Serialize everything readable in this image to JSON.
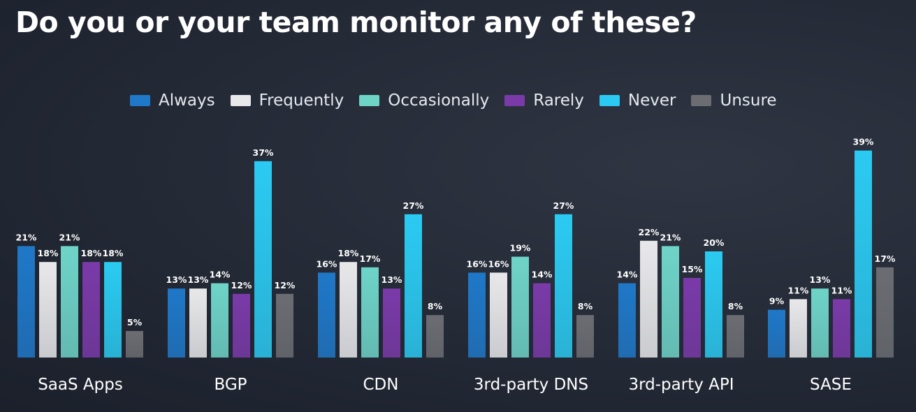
{
  "title": "Do you or your team monitor any of these?",
  "chart_data": {
    "type": "bar",
    "title": "Do you or your team monitor any of these?",
    "xlabel": "",
    "ylabel": "",
    "ylim": [
      0,
      40
    ],
    "grid": false,
    "legend_position": "top",
    "categories": [
      "SaaS Apps",
      "BGP",
      "CDN",
      "3rd-party DNS",
      "3rd-party API",
      "SASE"
    ],
    "series": [
      {
        "name": "Always",
        "color": "#1f78c8",
        "values": [
          21,
          13,
          16,
          16,
          14,
          9
        ]
      },
      {
        "name": "Frequently",
        "color": "#e8e8ea",
        "values": [
          18,
          13,
          18,
          16,
          22,
          11
        ]
      },
      {
        "name": "Occasionally",
        "color": "#6fd4c8",
        "values": [
          21,
          14,
          17,
          19,
          21,
          13
        ]
      },
      {
        "name": "Rarely",
        "color": "#7a3aa8",
        "values": [
          18,
          12,
          13,
          14,
          15,
          11
        ]
      },
      {
        "name": "Never",
        "color": "#2bcaf2",
        "values": [
          18,
          37,
          27,
          27,
          20,
          39
        ]
      },
      {
        "name": "Unsure",
        "color": "#6b6d72",
        "values": [
          5,
          12,
          8,
          8,
          8,
          17
        ]
      }
    ],
    "value_suffix": "%"
  }
}
